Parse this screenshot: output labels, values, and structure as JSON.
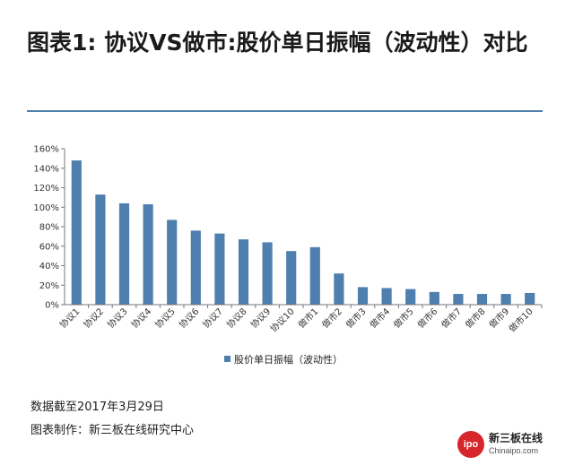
{
  "title": "图表1: 协议VS做市:股价单日振幅（波动性）对比",
  "footnote_date": "数据截至2017年3月29日",
  "footnote_source": "图表制作：新三板在线研究中心",
  "brand": {
    "cn": "新三板在线",
    "en": "Chinaipo.com",
    "mark": "ipo"
  },
  "colors": {
    "bar": "#4f7fae",
    "rule": "#4f7fae",
    "brand": "#d7262b"
  },
  "chart_data": {
    "type": "bar",
    "categories": [
      "协议1",
      "协议2",
      "协议3",
      "协议4",
      "协议5",
      "协议6",
      "协议7",
      "协议8",
      "协议9",
      "协议10",
      "做市1",
      "做市2",
      "做市3",
      "做市4",
      "做市5",
      "做市6",
      "做市7",
      "做市8",
      "做市9",
      "做市10"
    ],
    "series": [
      {
        "name": "股价单日振幅（波动性）",
        "values": [
          148,
          113,
          104,
          103,
          87,
          76,
          73,
          67,
          64,
          55,
          59,
          32,
          18,
          17,
          16,
          13,
          11,
          11,
          11,
          12
        ]
      }
    ],
    "ylim": [
      0,
      160
    ],
    "yticks": [
      "0%",
      "20%",
      "40%",
      "60%",
      "80%",
      "100%",
      "120%",
      "140%",
      "160%"
    ],
    "grid": false,
    "legend": "bottom"
  }
}
